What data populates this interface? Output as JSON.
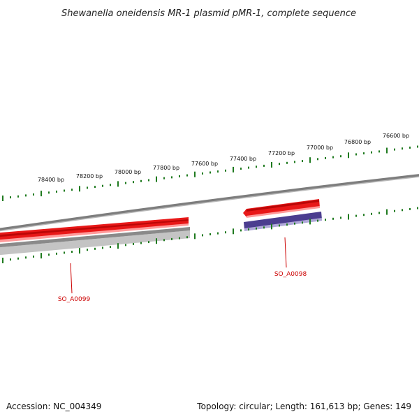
{
  "title": "Shewanella oneidensis MR-1 plasmid pMR-1, complete sequence",
  "footer": {
    "accession": "Accession: NC_004349",
    "summary": "Topology: circular; Length: 161,613 bp; Genes: 149"
  },
  "colors": {
    "tick": "#1f7a1f",
    "backbone": "#8a8a8a",
    "gene_forward": "#e81818",
    "gene_reverse": "#4b3d8f",
    "gene_shadow": "#c8c8c8",
    "label": "#cc0000"
  },
  "scale_labels": [
    "78400 bp",
    "78200 bp",
    "78000 bp",
    "77800 bp",
    "77600 bp",
    "77400 bp",
    "77200 bp",
    "77000 bp",
    "76800 bp",
    "76600 bp"
  ],
  "genes": [
    {
      "name": "SO_A0099",
      "strand": "forward"
    },
    {
      "name": "SO_A0098",
      "strand": "forward"
    }
  ]
}
